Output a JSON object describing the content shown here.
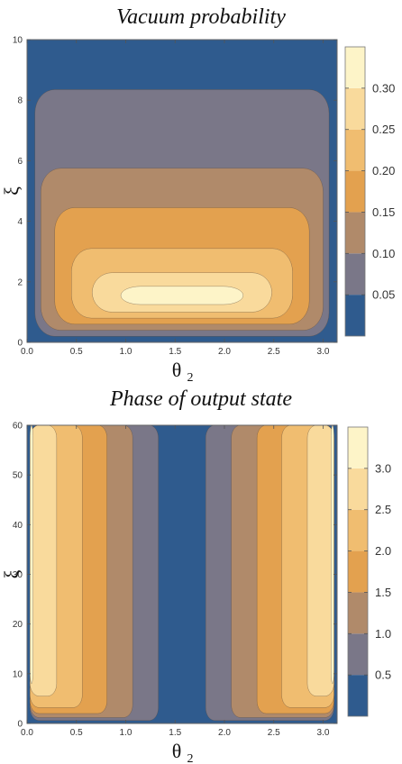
{
  "chart_data": [
    {
      "type": "heatmap",
      "title": "Vacuum probability",
      "xlabel": "θ",
      "xlabel_sub": "2",
      "ylabel": "ξ",
      "xlim": [
        0,
        3.14159
      ],
      "ylim": [
        0,
        10
      ],
      "xticks": [
        0.0,
        0.5,
        1.0,
        1.5,
        2.0,
        2.5,
        3.0
      ],
      "xtick_labels": [
        "0.0",
        "0.5",
        "1.0",
        "1.5",
        "2.0",
        "2.5",
        "3.0"
      ],
      "yticks": [
        0,
        2,
        4,
        6,
        8,
        10
      ],
      "ytick_labels": [
        "0",
        "2",
        "4",
        "6",
        "8",
        "10"
      ],
      "contour_levels": [
        0.05,
        0.1,
        0.15,
        0.2,
        0.25,
        0.3
      ],
      "colorbar_tick_labels": [
        "0.05",
        "0.10",
        "0.15",
        "0.20",
        "0.25",
        "0.30"
      ],
      "colorbar_range": [
        0,
        0.35
      ],
      "colors": [
        "#2f5b8e",
        "#7a7788",
        "#b08a6a",
        "#e3a14f",
        "#f0bd70",
        "#f9da9c",
        "#fdf4c8"
      ],
      "regions": [
        {
          "level": 1,
          "x": [
            0.08,
            3.06
          ],
          "y": [
            0.2,
            8.35
          ]
        },
        {
          "level": 2,
          "x": [
            0.14,
            3.0
          ],
          "y": [
            0.4,
            5.75
          ]
        },
        {
          "level": 3,
          "x": [
            0.28,
            2.86
          ],
          "y": [
            0.6,
            4.45
          ]
        },
        {
          "level": 4,
          "x": [
            0.45,
            2.69
          ],
          "y": [
            0.8,
            3.1
          ]
        },
        {
          "level": 5,
          "x": [
            0.66,
            2.48
          ],
          "y": [
            1.0,
            2.3
          ]
        },
        {
          "level": 6,
          "x": [
            0.95,
            2.19
          ],
          "y": [
            1.25,
            1.85
          ]
        }
      ]
    },
    {
      "type": "heatmap",
      "title": "Phase of output state",
      "xlabel": "θ",
      "xlabel_sub": "2",
      "ylabel": "ξ",
      "xlim": [
        0,
        3.14159
      ],
      "ylim": [
        0,
        60
      ],
      "xticks": [
        0.0,
        0.5,
        1.0,
        1.5,
        2.0,
        2.5,
        3.0
      ],
      "xtick_labels": [
        "0.0",
        "0.5",
        "1.0",
        "1.5",
        "2.0",
        "2.5",
        "3.0"
      ],
      "yticks": [
        0,
        10,
        20,
        30,
        40,
        50,
        60
      ],
      "ytick_labels": [
        "0",
        "10",
        "20",
        "30",
        "40",
        "50",
        "60"
      ],
      "contour_levels": [
        0.5,
        1.0,
        1.5,
        2.0,
        2.5,
        3.0
      ],
      "colorbar_tick_labels": [
        "0.5",
        "1.0",
        "1.5",
        "2.0",
        "2.5",
        "3.0"
      ],
      "colorbar_range": [
        0,
        3.5
      ],
      "colors": [
        "#2f5b8e",
        "#7a7788",
        "#b08a6a",
        "#e3a14f",
        "#f0bd70",
        "#f9da9c",
        "#fdf4c8"
      ],
      "regions": [
        {
          "level": 1,
          "x": [
            0.03,
            1.33
          ],
          "y": [
            0.6,
            60
          ]
        },
        {
          "level": 2,
          "x": [
            0.03,
            1.07
          ],
          "y": [
            1.2,
            60
          ]
        },
        {
          "level": 3,
          "x": [
            0.03,
            0.81
          ],
          "y": [
            2.0,
            60
          ]
        },
        {
          "level": 4,
          "x": [
            0.03,
            0.56
          ],
          "y": [
            3.2,
            60
          ]
        },
        {
          "level": 5,
          "x": [
            0.03,
            0.3
          ],
          "y": [
            5.5,
            60
          ]
        },
        {
          "level": 6,
          "x": [
            0.03,
            0.06
          ],
          "y": [
            8.0,
            60
          ]
        },
        {
          "level": 1,
          "x": [
            1.81,
            3.11
          ],
          "y": [
            0.6,
            60
          ]
        },
        {
          "level": 2,
          "x": [
            2.07,
            3.11
          ],
          "y": [
            1.2,
            60
          ]
        },
        {
          "level": 3,
          "x": [
            2.33,
            3.11
          ],
          "y": [
            2.0,
            60
          ]
        },
        {
          "level": 4,
          "x": [
            2.58,
            3.11
          ],
          "y": [
            3.2,
            60
          ]
        },
        {
          "level": 5,
          "x": [
            2.84,
            3.11
          ],
          "y": [
            5.5,
            60
          ]
        },
        {
          "level": 6,
          "x": [
            3.08,
            3.11
          ],
          "y": [
            8.0,
            60
          ]
        }
      ]
    }
  ]
}
